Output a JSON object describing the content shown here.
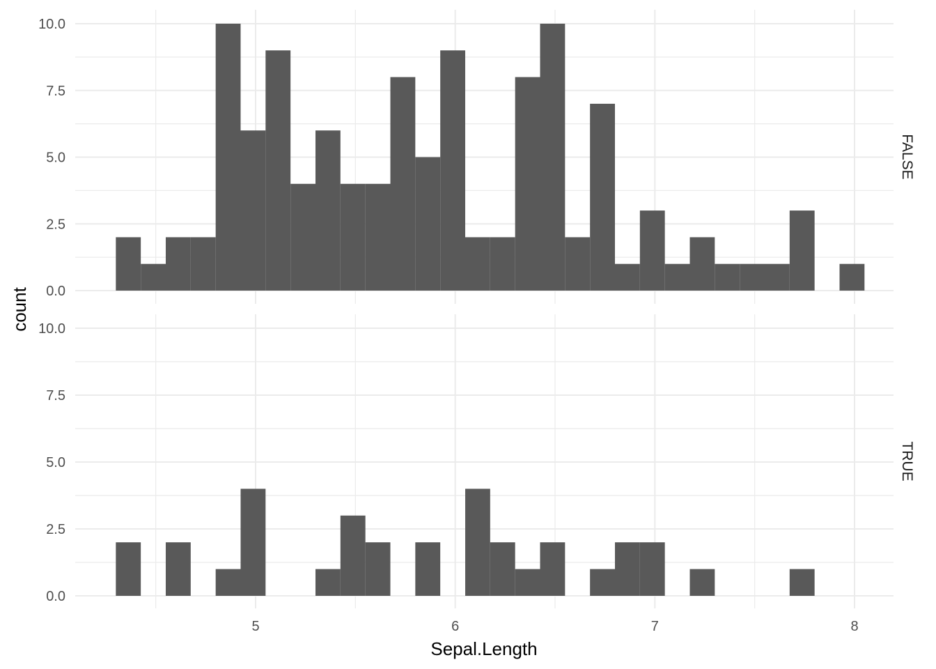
{
  "chart_data": {
    "type": "bar",
    "subtype": "histogram",
    "xlabel": "Sepal.Length",
    "ylabel": "count",
    "xlim": [
      4.1,
      8.2
    ],
    "ylim": [
      0,
      10
    ],
    "x_ticks": [
      5,
      6,
      7,
      8
    ],
    "y_ticks": [
      0.0,
      2.5,
      5.0,
      7.5,
      10.0
    ],
    "y_tick_labels": [
      "0.0",
      "2.5",
      "5.0",
      "7.5",
      "10.0"
    ],
    "bin_width": 0.125,
    "bin_start": 4.3,
    "grid": true,
    "bar_color": "#595959",
    "panels": [
      {
        "facet": "FALSE",
        "values": [
          2,
          1,
          2,
          2,
          10,
          6,
          9,
          4,
          6,
          4,
          4,
          8,
          5,
          9,
          2,
          2,
          8,
          10,
          2,
          7,
          1,
          3,
          1,
          2,
          1,
          1,
          1,
          3,
          0,
          1
        ]
      },
      {
        "facet": "TRUE",
        "values": [
          2,
          0,
          2,
          0,
          1,
          4,
          0,
          0,
          1,
          3,
          2,
          0,
          2,
          0,
          4,
          2,
          1,
          2,
          0,
          1,
          2,
          2,
          0,
          1,
          0,
          0,
          0,
          1,
          0,
          0
        ]
      }
    ]
  }
}
